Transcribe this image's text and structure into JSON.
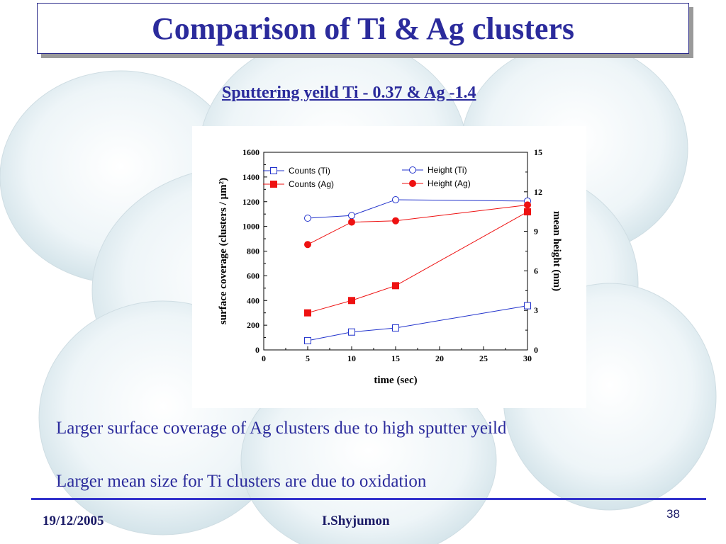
{
  "slide": {
    "title": "Comparison of Ti & Ag clusters",
    "subtitle": "Sputtering yeild Ti - 0.37 & Ag -1.4",
    "notes": [
      "Larger surface coverage of Ag clusters due to high sputter yeild",
      "Larger mean size for Ti clusters are due to oxidation"
    ],
    "footer": {
      "date": "19/12/2005",
      "author": "I.Shyjumon",
      "page": "38"
    },
    "colors": {
      "title_text": "#2b2b9c",
      "footer_line": "#3333cc",
      "bubble": "#e2eef2"
    }
  },
  "chart_data": {
    "type": "line",
    "title": "",
    "xlabel": "time (sec)",
    "ylabel_left": "surface coverage (clusters / µm²)",
    "ylabel_right": "mean height (nm)",
    "xlim": [
      0,
      30
    ],
    "xticks": [
      0,
      5,
      10,
      15,
      20,
      25,
      30
    ],
    "ylim_left": [
      0,
      1600
    ],
    "yticks_left": [
      0,
      200,
      400,
      600,
      800,
      1000,
      1200,
      1400,
      1600
    ],
    "ylim_right": [
      0,
      15
    ],
    "yticks_right": [
      0,
      3,
      6,
      9,
      12,
      15
    ],
    "grid": false,
    "legend": [
      {
        "placement": "top-left",
        "entries": [
          "Counts (Ti)",
          "Counts (Ag)"
        ]
      },
      {
        "placement": "top-right",
        "entries": [
          "Height (Ti)",
          "Height (Ag)"
        ]
      }
    ],
    "series": [
      {
        "name": "Counts (Ti)",
        "axis": "left",
        "marker": "square-open",
        "color": "#2233cc",
        "x": [
          5,
          10,
          15,
          30
        ],
        "values": [
          75,
          145,
          178,
          358
        ]
      },
      {
        "name": "Counts (Ag)",
        "axis": "left",
        "marker": "square-filled",
        "color": "#ee1111",
        "x": [
          5,
          10,
          15,
          30
        ],
        "values": [
          300,
          400,
          520,
          1118
        ]
      },
      {
        "name": "Height (Ti)",
        "axis": "right",
        "marker": "circle-open",
        "color": "#2233cc",
        "x": [
          5,
          10,
          15,
          30
        ],
        "values": [
          10.0,
          10.2,
          11.4,
          11.3
        ]
      },
      {
        "name": "Height (Ag)",
        "axis": "right",
        "marker": "circle-filled",
        "color": "#ee1111",
        "x": [
          5,
          10,
          15,
          30
        ],
        "values": [
          8.0,
          9.7,
          9.8,
          11.0
        ]
      }
    ]
  }
}
